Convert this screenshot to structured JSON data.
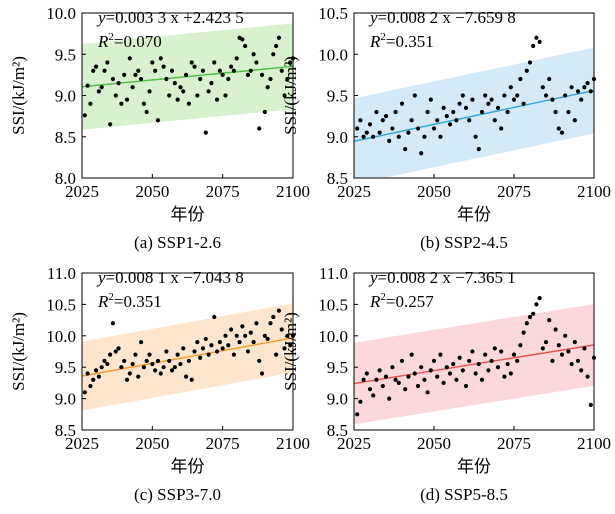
{
  "chart_data": [
    {
      "type": "scatter",
      "caption": "(a) SSP1-2.6",
      "xlabel": "年份",
      "ylabel": "SSI/(kJ/m²)",
      "xlim": [
        2025,
        2100
      ],
      "ylim": [
        8.0,
        10.0
      ],
      "xticks": [
        2025,
        2050,
        2075,
        2100
      ],
      "yticks": [
        8.0,
        8.5,
        9.0,
        9.5,
        10.0
      ],
      "yticklabels": [
        "8.0",
        "8.5",
        "9.0",
        "9.5",
        "10.0"
      ],
      "equation": {
        "lhs": "y",
        "rhs": "=0.003 3 x +2.423 5",
        "slope": 0.0033,
        "intercept": 2.4235
      },
      "r2": {
        "label": "R",
        "sup": "2",
        "value": "=0.070"
      },
      "band_halfwidth": 0.52,
      "colors": {
        "band": "#d8f1cf",
        "line": "#4cc040"
      },
      "points": [
        [
          2026,
          8.76
        ],
        [
          2027,
          9.12
        ],
        [
          2028,
          8.9
        ],
        [
          2029,
          9.3
        ],
        [
          2030,
          9.35
        ],
        [
          2031,
          9.05
        ],
        [
          2032,
          9.1
        ],
        [
          2033,
          9.3
        ],
        [
          2034,
          9.4
        ],
        [
          2035,
          8.65
        ],
        [
          2036,
          9.2
        ],
        [
          2037,
          9.0
        ],
        [
          2038,
          9.15
        ],
        [
          2039,
          8.9
        ],
        [
          2040,
          9.25
        ],
        [
          2041,
          8.95
        ],
        [
          2042,
          9.45
        ],
        [
          2043,
          9.1
        ],
        [
          2044,
          9.25
        ],
        [
          2045,
          9.3
        ],
        [
          2046,
          9.2
        ],
        [
          2047,
          8.9
        ],
        [
          2048,
          8.8
        ],
        [
          2049,
          9.05
        ],
        [
          2050,
          9.4
        ],
        [
          2051,
          9.3
        ],
        [
          2052,
          8.7
        ],
        [
          2053,
          9.45
        ],
        [
          2054,
          9.35
        ],
        [
          2055,
          9.2
        ],
        [
          2056,
          9.0
        ],
        [
          2057,
          9.3
        ],
        [
          2058,
          9.15
        ],
        [
          2059,
          8.95
        ],
        [
          2060,
          9.1
        ],
        [
          2061,
          9.05
        ],
        [
          2062,
          9.25
        ],
        [
          2063,
          8.9
        ],
        [
          2064,
          9.4
        ],
        [
          2065,
          9.35
        ],
        [
          2066,
          9.0
        ],
        [
          2067,
          9.2
        ],
        [
          2068,
          9.3
        ],
        [
          2069,
          8.55
        ],
        [
          2070,
          9.05
        ],
        [
          2071,
          9.15
        ],
        [
          2072,
          9.4
        ],
        [
          2073,
          8.95
        ],
        [
          2074,
          9.3
        ],
        [
          2075,
          9.25
        ],
        [
          2076,
          9.0
        ],
        [
          2077,
          9.2
        ],
        [
          2078,
          9.35
        ],
        [
          2079,
          9.3
        ],
        [
          2080,
          9.45
        ],
        [
          2081,
          9.7
        ],
        [
          2082,
          9.68
        ],
        [
          2083,
          9.6
        ],
        [
          2084,
          9.25
        ],
        [
          2085,
          9.3
        ],
        [
          2086,
          9.5
        ],
        [
          2087,
          9.4
        ],
        [
          2088,
          8.6
        ],
        [
          2089,
          9.25
        ],
        [
          2090,
          8.8
        ],
        [
          2091,
          9.1
        ],
        [
          2092,
          9.2
        ],
        [
          2093,
          9.5
        ],
        [
          2094,
          9.6
        ],
        [
          2095,
          9.7
        ],
        [
          2096,
          9.3
        ],
        [
          2097,
          9.0
        ],
        [
          2098,
          9.2
        ],
        [
          2099,
          9.4
        ],
        [
          2100,
          9.45
        ]
      ]
    },
    {
      "type": "scatter",
      "caption": "(b) SSP2-4.5",
      "xlabel": "年份",
      "ylabel": "SSI/(kJ/m²)",
      "xlim": [
        2025,
        2100
      ],
      "ylim": [
        8.5,
        10.5
      ],
      "xticks": [
        2025,
        2050,
        2075,
        2100
      ],
      "yticks": [
        8.5,
        9.0,
        9.5,
        10.0,
        10.5
      ],
      "yticklabels": [
        "8.5",
        "9.0",
        "9.5",
        "10.0",
        "10.5"
      ],
      "equation": {
        "lhs": "y",
        "rhs": "=0.008 2 x −7.659 8",
        "slope": 0.0082,
        "intercept": -7.6598
      },
      "r2": {
        "label": "R",
        "sup": "2",
        "value": "=0.351"
      },
      "band_halfwidth": 0.52,
      "colors": {
        "band": "#d4eaf8",
        "line": "#2ea4d8"
      },
      "points": [
        [
          2026,
          9.1
        ],
        [
          2027,
          9.2
        ],
        [
          2028,
          9.0
        ],
        [
          2029,
          9.05
        ],
        [
          2030,
          9.15
        ],
        [
          2031,
          9.0
        ],
        [
          2032,
          9.3
        ],
        [
          2033,
          9.05
        ],
        [
          2034,
          9.2
        ],
        [
          2035,
          9.25
        ],
        [
          2036,
          8.95
        ],
        [
          2037,
          9.1
        ],
        [
          2038,
          9.3
        ],
        [
          2039,
          9.0
        ],
        [
          2040,
          9.4
        ],
        [
          2041,
          8.85
        ],
        [
          2042,
          9.05
        ],
        [
          2043,
          9.2
        ],
        [
          2044,
          9.5
        ],
        [
          2045,
          9.1
        ],
        [
          2046,
          8.8
        ],
        [
          2047,
          9.0
        ],
        [
          2048,
          9.3
        ],
        [
          2049,
          9.45
        ],
        [
          2050,
          9.1
        ],
        [
          2051,
          9.2
        ],
        [
          2052,
          9.0
        ],
        [
          2053,
          9.35
        ],
        [
          2054,
          9.25
        ],
        [
          2055,
          9.15
        ],
        [
          2056,
          9.3
        ],
        [
          2057,
          9.2
        ],
        [
          2058,
          9.4
        ],
        [
          2059,
          9.5
        ],
        [
          2060,
          9.35
        ],
        [
          2061,
          9.2
        ],
        [
          2062,
          9.45
        ],
        [
          2063,
          9.0
        ],
        [
          2064,
          8.85
        ],
        [
          2065,
          9.3
        ],
        [
          2066,
          9.5
        ],
        [
          2067,
          9.4
        ],
        [
          2068,
          9.45
        ],
        [
          2069,
          9.2
        ],
        [
          2070,
          9.35
        ],
        [
          2071,
          9.1
        ],
        [
          2072,
          9.5
        ],
        [
          2073,
          9.3
        ],
        [
          2074,
          9.6
        ],
        [
          2075,
          9.45
        ],
        [
          2076,
          9.5
        ],
        [
          2077,
          9.7
        ],
        [
          2078,
          9.4
        ],
        [
          2079,
          9.8
        ],
        [
          2080,
          9.9
        ],
        [
          2081,
          10.1
        ],
        [
          2082,
          10.2
        ],
        [
          2083,
          10.15
        ],
        [
          2084,
          9.6
        ],
        [
          2085,
          9.5
        ],
        [
          2086,
          9.7
        ],
        [
          2087,
          9.45
        ],
        [
          2088,
          9.3
        ],
        [
          2089,
          9.1
        ],
        [
          2090,
          9.05
        ],
        [
          2091,
          9.5
        ],
        [
          2092,
          9.3
        ],
        [
          2093,
          9.6
        ],
        [
          2094,
          9.2
        ],
        [
          2095,
          9.55
        ],
        [
          2096,
          9.45
        ],
        [
          2097,
          9.6
        ],
        [
          2098,
          9.65
        ],
        [
          2099,
          9.55
        ],
        [
          2100,
          9.7
        ]
      ]
    },
    {
      "type": "scatter",
      "caption": "(c) SSP3-7.0",
      "xlabel": "年份",
      "ylabel": "SSI/(kJ/m²)",
      "xlim": [
        2025,
        2100
      ],
      "ylim": [
        8.5,
        11.0
      ],
      "xticks": [
        2025,
        2050,
        2075,
        2100
      ],
      "yticks": [
        8.5,
        9.0,
        9.5,
        10.0,
        10.5,
        11.0
      ],
      "yticklabels": [
        "8.5",
        "9.0",
        "9.5",
        "10.0",
        "10.5",
        "11.0"
      ],
      "equation": {
        "lhs": "y",
        "rhs": "=0.008 1 x −7.043 8",
        "slope": 0.0081,
        "intercept": -7.0438
      },
      "r2": {
        "label": "R",
        "sup": "2",
        "value": "=0.351"
      },
      "band_halfwidth": 0.55,
      "colors": {
        "band": "#fde6cd",
        "line": "#f39a1f"
      },
      "points": [
        [
          2026,
          9.1
        ],
        [
          2027,
          9.4
        ],
        [
          2028,
          9.2
        ],
        [
          2029,
          9.3
        ],
        [
          2030,
          9.45
        ],
        [
          2031,
          9.35
        ],
        [
          2032,
          9.5
        ],
        [
          2033,
          9.6
        ],
        [
          2034,
          9.55
        ],
        [
          2035,
          9.7
        ],
        [
          2036,
          10.2
        ],
        [
          2037,
          9.75
        ],
        [
          2038,
          9.8
        ],
        [
          2039,
          9.5
        ],
        [
          2040,
          9.6
        ],
        [
          2041,
          9.3
        ],
        [
          2042,
          9.4
        ],
        [
          2043,
          9.55
        ],
        [
          2044,
          9.7
        ],
        [
          2045,
          9.35
        ],
        [
          2046,
          9.9
        ],
        [
          2047,
          9.5
        ],
        [
          2048,
          9.6
        ],
        [
          2049,
          9.7
        ],
        [
          2050,
          9.55
        ],
        [
          2051,
          9.45
        ],
        [
          2052,
          9.6
        ],
        [
          2053,
          9.4
        ],
        [
          2054,
          9.5
        ],
        [
          2055,
          9.75
        ],
        [
          2056,
          9.6
        ],
        [
          2057,
          9.45
        ],
        [
          2058,
          9.5
        ],
        [
          2059,
          9.7
        ],
        [
          2060,
          9.55
        ],
        [
          2061,
          9.8
        ],
        [
          2062,
          9.35
        ],
        [
          2063,
          9.6
        ],
        [
          2064,
          9.3
        ],
        [
          2065,
          9.75
        ],
        [
          2066,
          9.9
        ],
        [
          2067,
          9.65
        ],
        [
          2068,
          9.8
        ],
        [
          2069,
          9.95
        ],
        [
          2070,
          9.7
        ],
        [
          2071,
          9.85
        ],
        [
          2072,
          10.3
        ],
        [
          2073,
          9.75
        ],
        [
          2074,
          9.9
        ],
        [
          2075,
          9.8
        ],
        [
          2076,
          10.0
        ],
        [
          2077,
          9.85
        ],
        [
          2078,
          10.1
        ],
        [
          2079,
          9.7
        ],
        [
          2080,
          10.0
        ],
        [
          2081,
          9.9
        ],
        [
          2082,
          10.15
        ],
        [
          2083,
          10.0
        ],
        [
          2084,
          9.75
        ],
        [
          2085,
          10.05
        ],
        [
          2086,
          9.9
        ],
        [
          2087,
          10.2
        ],
        [
          2088,
          9.6
        ],
        [
          2089,
          9.4
        ],
        [
          2090,
          10.0
        ],
        [
          2091,
          9.95
        ],
        [
          2092,
          10.2
        ],
        [
          2093,
          10.3
        ],
        [
          2094,
          9.7
        ],
        [
          2095,
          10.4
        ],
        [
          2096,
          10.1
        ],
        [
          2097,
          9.8
        ],
        [
          2098,
          10.0
        ],
        [
          2099,
          9.85
        ],
        [
          2100,
          10.0
        ]
      ]
    },
    {
      "type": "scatter",
      "caption": "(d) SSP5-8.5",
      "xlabel": "年份",
      "ylabel": "SSI/(kJ/m²)",
      "xlim": [
        2025,
        2100
      ],
      "ylim": [
        8.5,
        11.0
      ],
      "xticks": [
        2025,
        2050,
        2075,
        2100
      ],
      "yticks": [
        8.5,
        9.0,
        9.5,
        10.0,
        10.5,
        11.0
      ],
      "yticklabels": [
        "8.5",
        "9.0",
        "9.5",
        "10.0",
        "10.5",
        "11.0"
      ],
      "equation": {
        "lhs": "y",
        "rhs": "=0.008 2 x −7.365 1",
        "slope": 0.0082,
        "intercept": -7.3651
      },
      "r2": {
        "label": "R",
        "sup": "2",
        "value": "=0.257"
      },
      "band_halfwidth": 0.65,
      "colors": {
        "band": "#fcd8dc",
        "line": "#e85050"
      },
      "points": [
        [
          2026,
          8.75
        ],
        [
          2027,
          8.95
        ],
        [
          2028,
          9.3
        ],
        [
          2029,
          9.4
        ],
        [
          2030,
          9.15
        ],
        [
          2031,
          9.05
        ],
        [
          2032,
          9.3
        ],
        [
          2033,
          9.45
        ],
        [
          2034,
          9.2
        ],
        [
          2035,
          9.35
        ],
        [
          2036,
          9.0
        ],
        [
          2037,
          9.5
        ],
        [
          2038,
          9.3
        ],
        [
          2039,
          9.25
        ],
        [
          2040,
          9.6
        ],
        [
          2041,
          9.15
        ],
        [
          2042,
          9.35
        ],
        [
          2043,
          9.7
        ],
        [
          2044,
          9.4
        ],
        [
          2045,
          9.2
        ],
        [
          2046,
          9.5
        ],
        [
          2047,
          9.3
        ],
        [
          2048,
          9.1
        ],
        [
          2049,
          9.45
        ],
        [
          2050,
          9.6
        ],
        [
          2051,
          9.35
        ],
        [
          2052,
          9.7
        ],
        [
          2053,
          9.25
        ],
        [
          2054,
          9.5
        ],
        [
          2055,
          9.4
        ],
        [
          2056,
          9.55
        ],
        [
          2057,
          9.3
        ],
        [
          2058,
          9.65
        ],
        [
          2059,
          9.45
        ],
        [
          2060,
          9.2
        ],
        [
          2061,
          9.6
        ],
        [
          2062,
          9.75
        ],
        [
          2063,
          9.4
        ],
        [
          2064,
          9.55
        ],
        [
          2065,
          9.3
        ],
        [
          2066,
          9.7
        ],
        [
          2067,
          9.45
        ],
        [
          2068,
          9.6
        ],
        [
          2069,
          9.8
        ],
        [
          2070,
          9.5
        ],
        [
          2071,
          9.75
        ],
        [
          2072,
          9.35
        ],
        [
          2073,
          9.55
        ],
        [
          2074,
          9.4
        ],
        [
          2075,
          9.7
        ],
        [
          2076,
          9.6
        ],
        [
          2077,
          9.85
        ],
        [
          2078,
          10.05
        ],
        [
          2079,
          10.2
        ],
        [
          2080,
          10.3
        ],
        [
          2081,
          10.35
        ],
        [
          2082,
          10.5
        ],
        [
          2083,
          10.6
        ],
        [
          2084,
          9.8
        ],
        [
          2085,
          9.9
        ],
        [
          2086,
          10.25
        ],
        [
          2087,
          9.6
        ],
        [
          2088,
          10.1
        ],
        [
          2089,
          9.85
        ],
        [
          2090,
          9.7
        ],
        [
          2091,
          10.0
        ],
        [
          2092,
          9.75
        ],
        [
          2093,
          9.55
        ],
        [
          2094,
          9.9
        ],
        [
          2095,
          9.6
        ],
        [
          2096,
          9.45
        ],
        [
          2097,
          9.8
        ],
        [
          2098,
          9.35
        ],
        [
          2099,
          8.9
        ],
        [
          2100,
          9.65
        ]
      ]
    }
  ]
}
